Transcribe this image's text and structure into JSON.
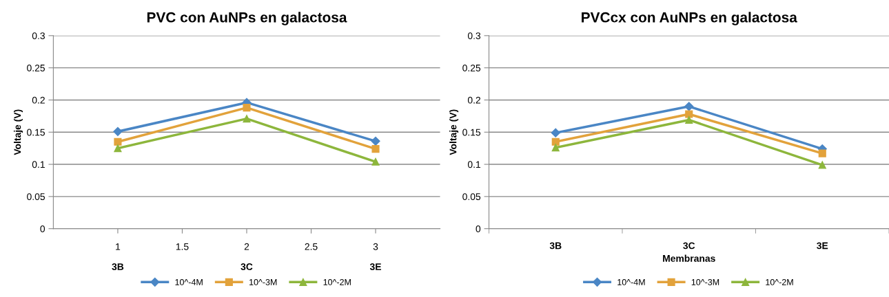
{
  "chart_data": [
    {
      "type": "line",
      "title": "PVC con AuNPs en galactosa",
      "ylabel": "Voltaje (V)",
      "x": [
        1,
        2,
        3
      ],
      "xlim": [
        0.5,
        3.5
      ],
      "xticks": [
        1,
        1.5,
        2,
        2.5,
        3
      ],
      "ylim": [
        0,
        0.3
      ],
      "yticks": [
        0,
        0.05,
        0.1,
        0.15,
        0.2,
        0.25,
        0.3
      ],
      "grid": "y",
      "legend": "bottom",
      "annotations": [
        "3B",
        "3C",
        "3E"
      ],
      "series": [
        {
          "name": "10^-4M",
          "color": "#4a86c5",
          "marker": "diamond",
          "values": [
            0.151,
            0.196,
            0.136
          ]
        },
        {
          "name": "10^-3M",
          "color": "#e2a23b",
          "marker": "square",
          "values": [
            0.135,
            0.188,
            0.124
          ]
        },
        {
          "name": "10^-2M",
          "color": "#8db63c",
          "marker": "triangle",
          "values": [
            0.125,
            0.171,
            0.104
          ]
        }
      ]
    },
    {
      "type": "line",
      "title": "PVCcx con AuNPs en galactosa",
      "ylabel": "Voltaje (V)",
      "xlabel": "Membranas",
      "categories": [
        "3B",
        "3C",
        "3E"
      ],
      "ylim": [
        0,
        0.3
      ],
      "yticks": [
        0,
        0.05,
        0.1,
        0.15,
        0.2,
        0.25,
        0.3
      ],
      "grid": "y",
      "legend": "bottom",
      "series": [
        {
          "name": "10^-4M",
          "color": "#4a86c5",
          "marker": "diamond",
          "values": [
            0.149,
            0.19,
            0.124
          ]
        },
        {
          "name": "10^-3M",
          "color": "#e2a23b",
          "marker": "square",
          "values": [
            0.135,
            0.178,
            0.117
          ]
        },
        {
          "name": "10^-2M",
          "color": "#8db63c",
          "marker": "triangle",
          "values": [
            0.126,
            0.169,
            0.099
          ]
        }
      ]
    }
  ]
}
